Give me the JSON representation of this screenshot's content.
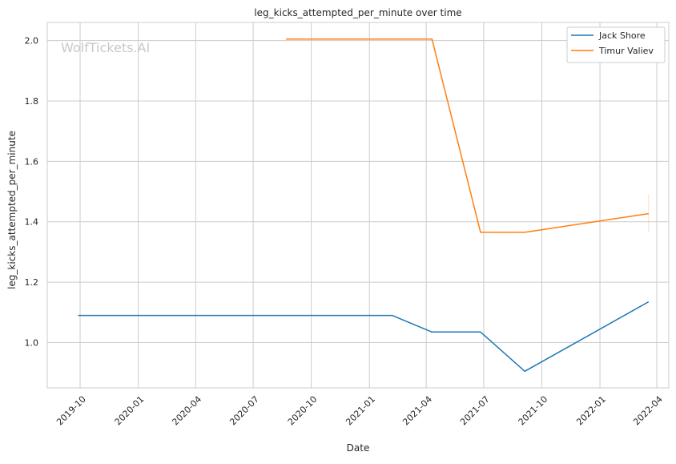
{
  "chart_data": {
    "type": "line",
    "title": "leg_kicks_attempted_per_minute over time",
    "xlabel": "Date",
    "ylabel": "leg_kicks_attempted_per_minute",
    "watermark": "WolfTickets.AI",
    "xlim": [
      "2019-08-10",
      "2022-04-20"
    ],
    "ylim": [
      0.85,
      2.06
    ],
    "x_ticks": [
      "2019-10",
      "2020-01",
      "2020-04",
      "2020-07",
      "2020-10",
      "2021-01",
      "2021-04",
      "2021-07",
      "2021-10",
      "2022-01",
      "2022-04"
    ],
    "y_ticks": [
      1.0,
      1.2,
      1.4,
      1.6,
      1.8,
      2.0
    ],
    "y_tick_labels": [
      "1.0",
      "1.2",
      "1.4",
      "1.6",
      "1.8",
      "2.0"
    ],
    "grid": true,
    "legend_position": "top-right",
    "series": [
      {
        "name": "Jack Shore",
        "color": "#1f77b4",
        "points": [
          {
            "x": "2019-09-28",
            "y": 1.09
          },
          {
            "x": "2021-02-06",
            "y": 1.09
          },
          {
            "x": "2021-04-10",
            "y": 1.035
          },
          {
            "x": "2021-06-26",
            "y": 1.035
          },
          {
            "x": "2021-09-04",
            "y": 0.905
          },
          {
            "x": "2022-03-19",
            "y": 1.135
          }
        ]
      },
      {
        "name": "Timur Valiev",
        "color": "#ff7f0e",
        "points": [
          {
            "x": "2020-08-22",
            "y": 2.005
          },
          {
            "x": "2021-04-10",
            "y": 2.005
          },
          {
            "x": "2021-06-26",
            "y": 1.365
          },
          {
            "x": "2021-09-04",
            "y": 1.365
          },
          {
            "x": "2022-03-19",
            "y": 1.427
          }
        ],
        "error_bar": {
          "x": "2022-03-19",
          "low": 1.365,
          "high": 1.49
        }
      }
    ]
  }
}
